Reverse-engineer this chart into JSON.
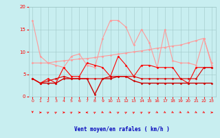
{
  "x": [
    0,
    1,
    2,
    3,
    4,
    5,
    6,
    7,
    8,
    9,
    10,
    11,
    12,
    13,
    14,
    15,
    16,
    17,
    18,
    19,
    20,
    21,
    22,
    23
  ],
  "series": [
    {
      "name": "trend_light",
      "color": "#FF9999",
      "y": [
        7.5,
        7.5,
        7.5,
        7.8,
        8.0,
        8.2,
        8.4,
        8.5,
        8.7,
        9.0,
        9.2,
        9.5,
        9.7,
        10.0,
        10.2,
        10.5,
        10.8,
        11.0,
        11.3,
        11.5,
        12.0,
        12.5,
        13.0,
        7.5
      ],
      "linewidth": 0.8,
      "marker": "D",
      "markersize": 1.5
    },
    {
      "name": "scatter_light",
      "color": "#FF9999",
      "y": [
        17.0,
        9.0,
        7.5,
        7.0,
        6.5,
        9.0,
        9.5,
        7.0,
        6.5,
        13.0,
        17.0,
        17.0,
        15.5,
        11.5,
        15.0,
        12.0,
        6.5,
        15.0,
        8.0,
        7.5,
        7.5,
        7.0,
        13.0,
        7.0
      ],
      "linewidth": 0.8,
      "marker": "D",
      "markersize": 1.5
    },
    {
      "name": "mid_red",
      "color": "#FF0000",
      "y": [
        4.0,
        3.0,
        4.0,
        3.0,
        6.5,
        4.5,
        4.5,
        7.5,
        7.0,
        6.5,
        4.5,
        9.0,
        7.0,
        4.5,
        7.0,
        7.0,
        6.5,
        6.5,
        6.5,
        4.0,
        3.0,
        6.5,
        6.5,
        6.5
      ],
      "linewidth": 0.8,
      "marker": "D",
      "markersize": 1.5
    },
    {
      "name": "low_dark1",
      "color": "#CC0000",
      "y": [
        4.0,
        3.0,
        3.0,
        3.0,
        4.0,
        4.0,
        4.0,
        4.0,
        0.5,
        4.0,
        4.0,
        4.5,
        4.5,
        3.5,
        3.0,
        3.0,
        3.0,
        3.0,
        3.0,
        3.0,
        3.0,
        3.0,
        3.0,
        3.0
      ],
      "linewidth": 1.0,
      "marker": "D",
      "markersize": 1.5
    },
    {
      "name": "low_dark2",
      "color": "#DD0000",
      "y": [
        4.0,
        3.0,
        3.5,
        4.0,
        4.5,
        4.0,
        4.0,
        4.0,
        4.0,
        4.0,
        4.5,
        4.5,
        4.5,
        4.5,
        4.0,
        4.0,
        4.0,
        4.0,
        4.0,
        4.0,
        4.0,
        4.0,
        6.5,
        6.5
      ],
      "linewidth": 0.8,
      "marker": "D",
      "markersize": 1.5
    }
  ],
  "wind_angles_deg": [
    180,
    90,
    45,
    45,
    90,
    45,
    90,
    270,
    45,
    135,
    135,
    45,
    45,
    45,
    45,
    45,
    135,
    135,
    135,
    135,
    135,
    135,
    135,
    90
  ],
  "xlabel": "Vent moyen/en rafales ( km/h )",
  "xlim": [
    -0.5,
    23.5
  ],
  "ylim": [
    0,
    20
  ],
  "yticks": [
    0,
    5,
    10,
    15,
    20
  ],
  "xticks": [
    0,
    1,
    2,
    3,
    4,
    5,
    6,
    7,
    8,
    9,
    10,
    11,
    12,
    13,
    14,
    15,
    16,
    17,
    18,
    19,
    20,
    21,
    22,
    23
  ],
  "background_color": "#C8EEF0",
  "grid_color": "#A0C8C8",
  "tick_color": "#FF0000",
  "xlabel_color": "#0000BB",
  "figsize": [
    3.2,
    2.0
  ],
  "dpi": 100
}
